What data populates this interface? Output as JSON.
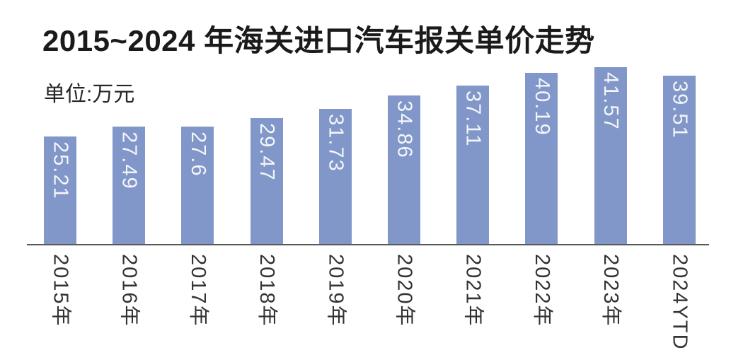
{
  "header": {
    "title": "2015~2024 年海关进口汽车报关单价走势",
    "unit_label": "单位:万元"
  },
  "colors": {
    "bar": "#8197C9",
    "axis": "#595959",
    "title_text": "#1a1a1a",
    "tick_text": "#333333",
    "value_label_text": "#f5f6f8"
  },
  "chart_data": {
    "type": "bar",
    "title": "2015~2024 年海关进口汽车报关单价走势",
    "ylabel": "单位:万元",
    "xlabel": "",
    "categories": [
      "2015年",
      "2016年",
      "2017年",
      "2018年",
      "2019年",
      "2020年",
      "2021年",
      "2022年",
      "2023年",
      "2024YTD"
    ],
    "values": [
      25.21,
      27.49,
      27.6,
      29.47,
      31.73,
      34.86,
      37.11,
      40.19,
      41.57,
      39.51
    ],
    "value_labels": [
      "25.21",
      "27.49",
      "27.6",
      "29.47",
      "31.73",
      "34.86",
      "37.11",
      "40.19",
      "41.57",
      "39.51"
    ],
    "ylim": [
      0,
      42
    ],
    "grid": false,
    "legend": "none",
    "value_labels_position": "inside-top-rotated",
    "tick_labels_rotation_deg": 90
  }
}
